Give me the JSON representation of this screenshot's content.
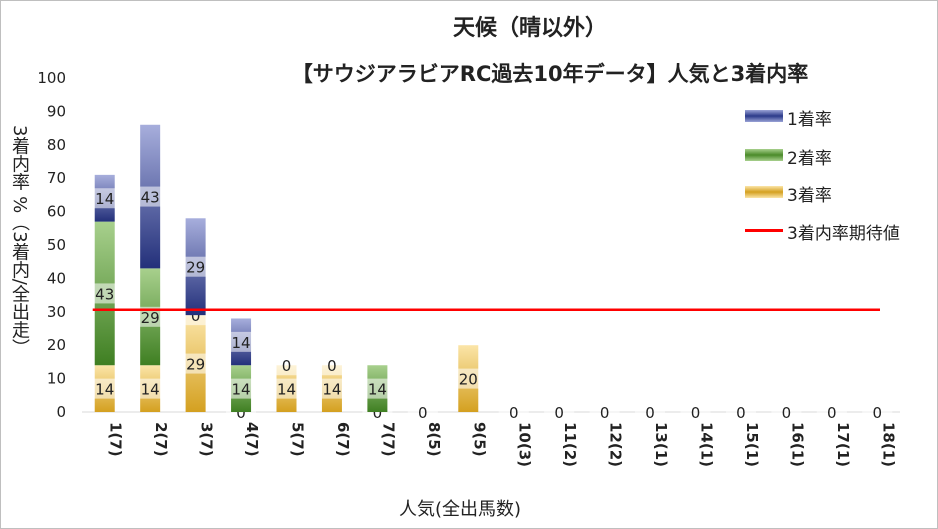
{
  "chart_data": {
    "type": "bar",
    "stacked": true,
    "title": "天候（晴以外）",
    "subtitle": "【サウジアラビアRC過去10年データ】人気と3着内率",
    "xlabel": "人気(全出馬数)",
    "ylabel": "3着内率 %（3着内/全出走）",
    "ylim": [
      0,
      100
    ],
    "yticks": [
      "0",
      "10",
      "20",
      "30",
      "40",
      "50",
      "60",
      "70",
      "80",
      "90",
      "100"
    ],
    "categories": [
      "1(7)",
      "2(7)",
      "3(7)",
      "4(7)",
      "5(7)",
      "6(7)",
      "7(7)",
      "8(5)",
      "9(5)",
      "10(3)",
      "11(2)",
      "12(2)",
      "13(1)",
      "14(1)",
      "15(1)",
      "16(1)",
      "17(1)",
      "18(1)"
    ],
    "series": [
      {
        "name": "3着率",
        "color": "#d4a020",
        "values": [
          14,
          14,
          29,
          0,
          14,
          14,
          0,
          0,
          20,
          0,
          0,
          0,
          0,
          0,
          0,
          0,
          0,
          0
        ],
        "labels": [
          "14",
          "14",
          "29",
          "0",
          "14",
          "14",
          "0",
          "0",
          "20",
          "0",
          "0",
          "0",
          "0",
          "0",
          "0",
          "0",
          "0",
          "0"
        ]
      },
      {
        "name": "2着率",
        "color": "#4a8a2a",
        "values": [
          43,
          29,
          0,
          14,
          0,
          0,
          14,
          0,
          0,
          0,
          0,
          0,
          0,
          0,
          0,
          0,
          0,
          0
        ],
        "labels": [
          "43",
          "29",
          "0",
          "14",
          "0",
          "0",
          "14",
          "",
          "",
          "",
          "",
          "",
          "",
          "",
          "",
          "",
          "",
          ""
        ]
      },
      {
        "name": "1着率",
        "color": "#2b3a8a",
        "values": [
          14,
          43,
          29,
          14,
          0,
          0,
          0,
          0,
          0,
          0,
          0,
          0,
          0,
          0,
          0,
          0,
          0,
          0
        ],
        "labels": [
          "14",
          "43",
          "29",
          "14",
          "",
          "",
          "",
          "",
          "",
          "",
          "",
          "",
          "",
          "",
          "",
          "",
          "",
          ""
        ]
      }
    ],
    "expected_line": {
      "name": "3着内率期待値",
      "value": 30.6,
      "color": "#ff0000"
    },
    "legend_position": "right"
  }
}
